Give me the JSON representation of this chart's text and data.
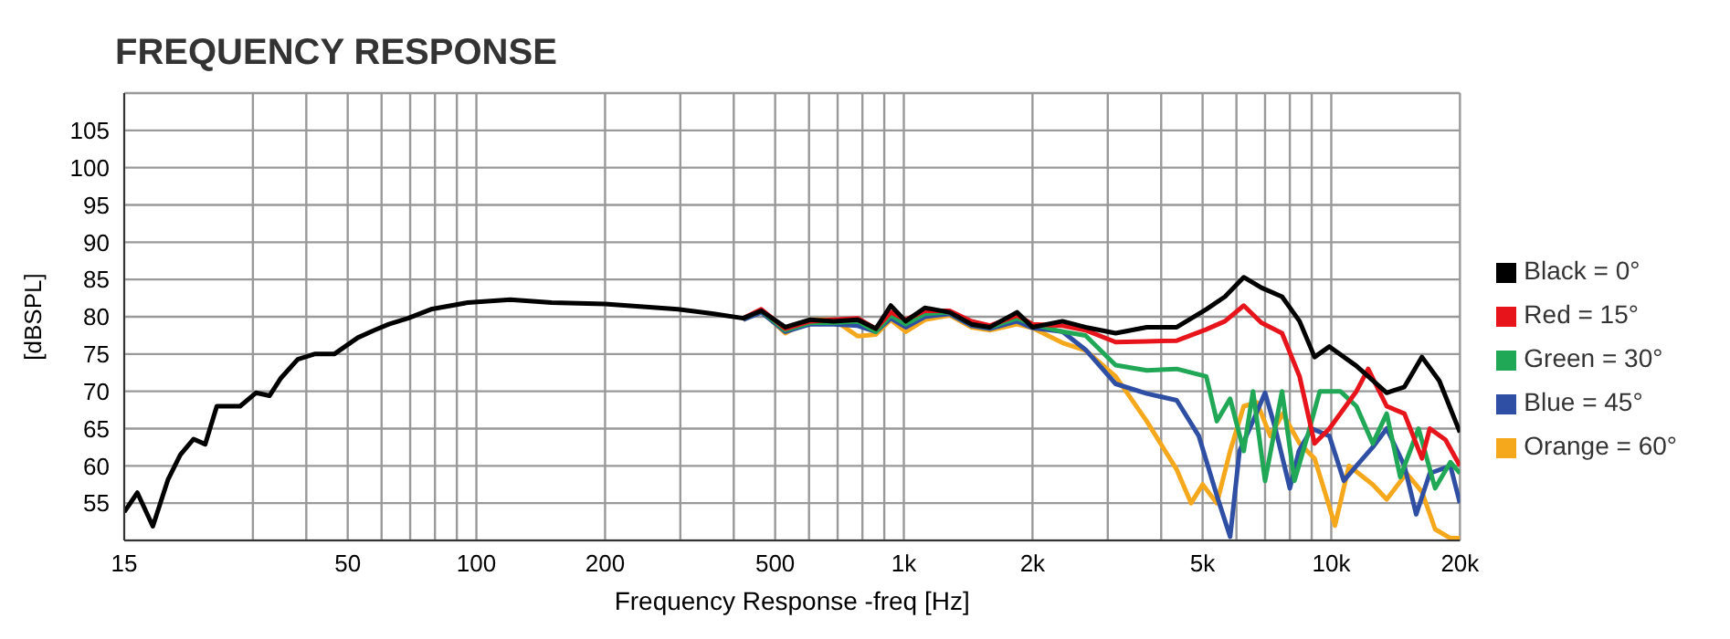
{
  "chart_data": {
    "type": "line",
    "title": "FREQUENCY RESPONSE",
    "xlabel": "Frequency Response -freq [Hz]",
    "ylabel": "[dBSPL]",
    "log": "x",
    "grid": true,
    "legend": "right",
    "line_style": "solid",
    "marker": "none",
    "xlim": [
      15,
      20000
    ],
    "ylim": [
      50,
      110
    ],
    "xticks": [
      15,
      {
        "value": 30,
        "label": null
      },
      {
        "value": 40,
        "label": null
      },
      50,
      {
        "value": 60,
        "label": null
      },
      {
        "value": 70,
        "label": null
      },
      {
        "value": 80,
        "label": null
      },
      {
        "value": 90,
        "label": null
      },
      100,
      200,
      {
        "value": 300,
        "label": null
      },
      {
        "value": 400,
        "label": null
      },
      500,
      {
        "value": 600,
        "label": null
      },
      {
        "value": 700,
        "label": null
      },
      {
        "value": 800,
        "label": null
      },
      {
        "value": 900,
        "label": null
      },
      {
        "value": 1000,
        "label": "1k"
      },
      {
        "value": 2000,
        "label": "2k"
      },
      {
        "value": 3000,
        "label": null
      },
      {
        "value": 4000,
        "label": null
      },
      {
        "value": 5000,
        "label": "5k"
      },
      {
        "value": 6000,
        "label": null
      },
      {
        "value": 7000,
        "label": null
      },
      {
        "value": 8000,
        "label": null
      },
      {
        "value": 9000,
        "label": null
      },
      {
        "value": 10000,
        "label": "10k"
      },
      {
        "value": 20000,
        "label": "20k"
      }
    ],
    "yticks": [
      55,
      60,
      65,
      70,
      75,
      80,
      85,
      90,
      95,
      100,
      105
    ],
    "series": [
      {
        "name": "Black = 0°",
        "color": "#000000",
        "x": [
          15,
          16.1,
          17.5,
          19,
          20.3,
          21.8,
          23.2,
          24.7,
          28,
          30.5,
          32.8,
          34.8,
          38.2,
          41.8,
          46.5,
          52.8,
          57.7,
          62.4,
          69.2,
          78.3,
          95.4,
          120,
          150,
          200,
          296,
          359,
          421,
          464,
          528,
          604,
          685,
          780,
          860,
          932,
          1010,
          1120,
          1280,
          1440,
          1590,
          1840,
          2000,
          2350,
          2660,
          3130,
          3700,
          4350,
          5100,
          5640,
          6240,
          6860,
          7670,
          8430,
          9140,
          9900,
          11450,
          13480,
          14830,
          16300,
          17900,
          20000
        ],
        "values": [
          53.8,
          56.4,
          51.9,
          58.2,
          61.5,
          63.6,
          62.9,
          68,
          68,
          69.8,
          69.4,
          71.7,
          74.3,
          75,
          75,
          77.2,
          78.2,
          79,
          79.8,
          81,
          81.9,
          82.3,
          81.9,
          81.7,
          81,
          80.4,
          79.8,
          80.8,
          78.6,
          79.6,
          79.4,
          79.6,
          78.4,
          81.5,
          79.4,
          81.2,
          80.6,
          79,
          78.6,
          80.6,
          78.6,
          79.4,
          78.6,
          77.8,
          78.6,
          78.6,
          81,
          82.7,
          85.3,
          83.9,
          82.7,
          79.4,
          74.6,
          76,
          73.4,
          69.8,
          70.6,
          74.6,
          71.4,
          64.5
        ]
      },
      {
        "name": "Red = 15°",
        "color": "#e8141b",
        "x": [
          421,
          464,
          528,
          604,
          685,
          780,
          860,
          932,
          1010,
          1120,
          1280,
          1440,
          1590,
          1840,
          2000,
          2350,
          2660,
          3130,
          3700,
          4350,
          5100,
          5640,
          6240,
          6860,
          7670,
          8430,
          9140,
          9900,
          11450,
          12200,
          13480,
          14830,
          16300,
          17000,
          18500,
          20000
        ],
        "values": [
          79.8,
          81,
          78.4,
          79.4,
          79.6,
          79.8,
          78.4,
          80.6,
          79.6,
          80.8,
          80.8,
          79.4,
          78.8,
          80.2,
          79,
          78.8,
          78.2,
          76.6,
          76.7,
          76.8,
          78.3,
          79.4,
          81.5,
          79.2,
          77.8,
          72,
          63,
          65,
          70,
          73,
          68,
          67,
          61,
          65,
          63.5,
          60
        ]
      },
      {
        "name": "Green = 30°",
        "color": "#21a857",
        "x": [
          421,
          464,
          528,
          604,
          685,
          780,
          860,
          932,
          1010,
          1120,
          1280,
          1440,
          1590,
          1840,
          2000,
          2350,
          2660,
          3130,
          3700,
          4350,
          5100,
          5400,
          5800,
          6240,
          6560,
          7000,
          7670,
          8200,
          8800,
          9400,
          10500,
          11450,
          12500,
          13480,
          14500,
          16000,
          17500,
          19000,
          20000
        ],
        "values": [
          79.8,
          80.8,
          78.2,
          79.2,
          79.2,
          79.4,
          78,
          80.2,
          79,
          80.4,
          80.6,
          79,
          78.6,
          79.8,
          79,
          78,
          77.5,
          73.5,
          72.8,
          73,
          72,
          66,
          69,
          62,
          70,
          58,
          70,
          58,
          64,
          70,
          70,
          68,
          63,
          67,
          58.5,
          65,
          57,
          60.5,
          59
        ]
      },
      {
        "name": "Blue = 45°",
        "color": "#2e4fa3",
        "x": [
          421,
          464,
          528,
          604,
          685,
          780,
          860,
          932,
          1010,
          1120,
          1280,
          1440,
          1590,
          1840,
          2000,
          2350,
          2660,
          3130,
          3700,
          4350,
          4900,
          5400,
          5800,
          6100,
          6560,
          7000,
          7400,
          8000,
          8400,
          9000,
          9900,
          10700,
          11450,
          12500,
          13480,
          14830,
          15800,
          17000,
          19000,
          20000
        ],
        "values": [
          79.6,
          80.6,
          78,
          79,
          79,
          78.8,
          78,
          79.8,
          78.6,
          80,
          80.4,
          78.8,
          78.4,
          79.4,
          78.5,
          78,
          75.6,
          71,
          69.7,
          68.8,
          64,
          56,
          50.5,
          62,
          66,
          69.8,
          65,
          57,
          62,
          65,
          64,
          58,
          60,
          62.5,
          65,
          60,
          53.5,
          59,
          60,
          55
        ]
      },
      {
        "name": "Orange = 60°",
        "color": "#f5a81c",
        "x": [
          421,
          464,
          528,
          604,
          685,
          780,
          860,
          932,
          1010,
          1120,
          1280,
          1440,
          1590,
          1840,
          2000,
          2350,
          2660,
          3130,
          3700,
          4350,
          4700,
          5000,
          5400,
          5800,
          6240,
          6700,
          7200,
          7700,
          8430,
          9140,
          9900,
          10200,
          11000,
          12500,
          13480,
          15000,
          16300,
          17500,
          19000,
          20000
        ],
        "values": [
          79.6,
          80.8,
          77.8,
          79.6,
          79.6,
          77.4,
          77.6,
          79.6,
          78,
          79.6,
          80.2,
          78.6,
          78.2,
          79,
          78.5,
          76.5,
          75.5,
          72,
          66,
          59.5,
          55,
          57.5,
          55,
          62,
          68,
          68.5,
          64,
          67,
          63,
          61,
          54.5,
          52,
          60,
          57.5,
          55.5,
          59,
          56.5,
          51.5,
          50.3,
          50.3
        ]
      }
    ]
  }
}
